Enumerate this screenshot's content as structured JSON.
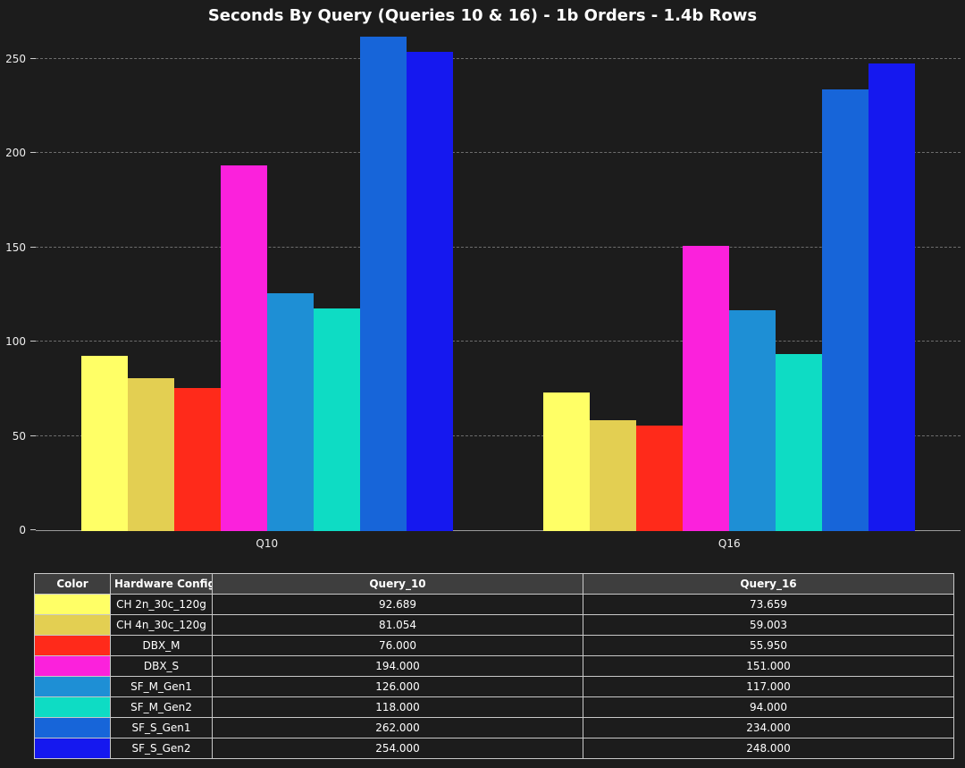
{
  "title": "Seconds By Query (Queries 10 & 16) - 1b Orders - 1.4b Rows",
  "colors": {
    "background": "#1c1c1c",
    "axis": "#9a9a9a",
    "gridline": "#6d6d6d",
    "table_header_bg": "#3e3e3e",
    "table_border": "#c8c8c8"
  },
  "chart_data": {
    "type": "bar",
    "title": "Seconds By Query (Queries 10 & 16) - 1b Orders - 1.4b Rows",
    "categories": [
      "Q10",
      "Q16"
    ],
    "series": [
      {
        "name": "CH 2n_30c_120g",
        "color": "#ffff66",
        "values": [
          92.689,
          73.659
        ]
      },
      {
        "name": "CH 4n_30c_120g",
        "color": "#e3cf52",
        "values": [
          81.054,
          59.003
        ]
      },
      {
        "name": "DBX_M",
        "color": "#ff2a1a",
        "values": [
          76.0,
          55.95
        ]
      },
      {
        "name": "DBX_S",
        "color": "#fb21dc",
        "values": [
          194.0,
          151.0
        ]
      },
      {
        "name": "SF_M_Gen1",
        "color": "#1e8fd5",
        "values": [
          126.0,
          117.0
        ]
      },
      {
        "name": "SF_M_Gen2",
        "color": "#0edcc4",
        "values": [
          118.0,
          94.0
        ]
      },
      {
        "name": "SF_S_Gen1",
        "color": "#1765d9",
        "values": [
          262.0,
          234.0
        ]
      },
      {
        "name": "SF_S_Gen2",
        "color": "#1518ef",
        "values": [
          254.0,
          248.0
        ]
      }
    ],
    "xlabel": "",
    "ylabel": "",
    "yticks": [
      0,
      50,
      100,
      150,
      200,
      250
    ],
    "ylim": [
      0,
      265
    ],
    "grid": "horizontal-dashed",
    "legend_position": "none (table below)"
  },
  "table": {
    "headers": [
      "Color",
      "Hardware Config",
      "Query_10",
      "Query_16"
    ],
    "rows": [
      {
        "color": "#ffff66",
        "config": "CH 2n_30c_120g",
        "q10": "92.689",
        "q16": "73.659"
      },
      {
        "color": "#e3cf52",
        "config": "CH 4n_30c_120g",
        "q10": "81.054",
        "q16": "59.003"
      },
      {
        "color": "#ff2a1a",
        "config": "DBX_M",
        "q10": "76.000",
        "q16": "55.950"
      },
      {
        "color": "#fb21dc",
        "config": "DBX_S",
        "q10": "194.000",
        "q16": "151.000"
      },
      {
        "color": "#1e8fd5",
        "config": "SF_M_Gen1",
        "q10": "126.000",
        "q16": "117.000"
      },
      {
        "color": "#0edcc4",
        "config": "SF_M_Gen2",
        "q10": "118.000",
        "q16": "94.000"
      },
      {
        "color": "#1765d9",
        "config": "SF_S_Gen1",
        "q10": "262.000",
        "q16": "234.000"
      },
      {
        "color": "#1518ef",
        "config": "SF_S_Gen2",
        "q10": "254.000",
        "q16": "248.000"
      }
    ]
  }
}
